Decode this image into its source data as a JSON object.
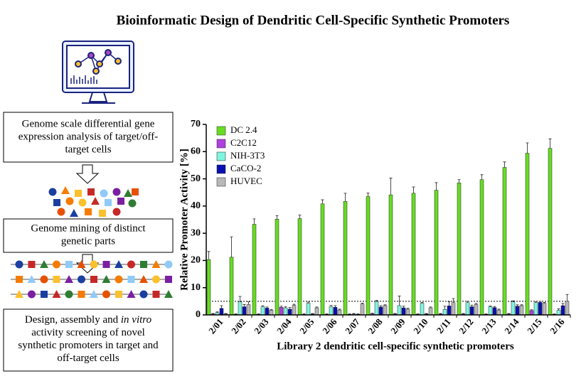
{
  "heading": "Bioinformatic Design of Dendritic Cell-Specific Synthetic Promoters",
  "steps": [
    {
      "lines": [
        "Genome scale differential gene",
        "expression analysis of target/off-",
        "target cells"
      ]
    },
    {
      "lines": [
        "Genome mining of distinct",
        "genetic parts"
      ]
    },
    {
      "lines": [
        [
          "Design, assembly and ",
          "in vitro"
        ],
        [
          "activity screening of novel"
        ],
        [
          "synthetic promoters in target and"
        ],
        [
          "off-target cells"
        ]
      ]
    }
  ],
  "chart_data": {
    "type": "bar",
    "ylabel": "Relative Promoter Activity [%]",
    "xlabel": "Library 2 dendritic cell-specific synthetic promoters",
    "categories": [
      "2/01",
      "2/02",
      "2/03",
      "2/04",
      "2/05",
      "2/06",
      "2/07",
      "2/08",
      "2/09",
      "2/10",
      "2/11",
      "2/12",
      "2/13",
      "2/14",
      "2/15",
      "2/16"
    ],
    "series": [
      {
        "name": "DC 2.4",
        "color": "#66dd22",
        "values": [
          20.3,
          21.2,
          33.3,
          35.2,
          35.4,
          40.8,
          41.7,
          43.5,
          44.1,
          44.7,
          45.8,
          48.5,
          49.7,
          54.2,
          59.4,
          61.2
        ],
        "errors": [
          3,
          7.5,
          2,
          1.3,
          1.3,
          1.5,
          3,
          1.3,
          6.2,
          2.3,
          2.8,
          1.2,
          1.8,
          2,
          3.8,
          3.5
        ]
      },
      {
        "name": "C2C12",
        "color": "#b040e0",
        "values": [
          0.3,
          0.2,
          0.2,
          2.8,
          0.2,
          0.2,
          0.2,
          0.4,
          0.3,
          0.2,
          0.3,
          0.3,
          0.2,
          0.3,
          1.6,
          0.2
        ],
        "errors": [
          0.2,
          0.2,
          0.2,
          0.4,
          0.2,
          0.2,
          0.2,
          0.2,
          0.2,
          0.2,
          0.2,
          0.2,
          0.2,
          0.2,
          0.3,
          0.2
        ]
      },
      {
        "name": "NIH-3T3",
        "color": "#7ff5e0",
        "values": [
          0.8,
          4.8,
          3.0,
          2.6,
          4.3,
          3.0,
          0.3,
          4.9,
          3.4,
          4.3,
          2.0,
          4.5,
          3.0,
          4.8,
          4.5,
          1.7
        ],
        "errors": [
          0.3,
          2.0,
          0.4,
          0.4,
          0.4,
          0.5,
          0.2,
          0.4,
          3.5,
          0.3,
          1.2,
          0.5,
          0.3,
          0.4,
          0.4,
          0.5
        ]
      },
      {
        "name": "CaCO-2",
        "color": "#0a10b0",
        "values": [
          2.4,
          3.0,
          2.5,
          2.1,
          0.3,
          2.8,
          0.2,
          2.9,
          2.6,
          0.3,
          3.3,
          3.0,
          2.7,
          3.2,
          4.6,
          3.4
        ],
        "errors": [
          1.0,
          0.8,
          0.4,
          0.6,
          0.2,
          0.6,
          0.2,
          0.5,
          0.6,
          0.2,
          1.5,
          0.6,
          0.4,
          0.5,
          0.4,
          0.8
        ]
      },
      {
        "name": "HUVEC",
        "color": "#b8b8b8",
        "values": [
          0.3,
          3.8,
          1.7,
          3.5,
          2.6,
          1.8,
          4.0,
          3.4,
          2.1,
          2.6,
          4.5,
          3.8,
          1.8,
          3.4,
          4.3,
          5.0
        ],
        "errors": [
          0.2,
          1.0,
          0.3,
          0.4,
          0.3,
          0.3,
          0.3,
          0.3,
          0.3,
          0.3,
          1.5,
          0.4,
          0.3,
          0.3,
          0.3,
          2.5
        ]
      }
    ],
    "ylim": [
      0,
      70
    ],
    "yticks": [
      0,
      10,
      20,
      30,
      40,
      50,
      60,
      70
    ],
    "reference_line": 5,
    "legend": "upper left"
  }
}
